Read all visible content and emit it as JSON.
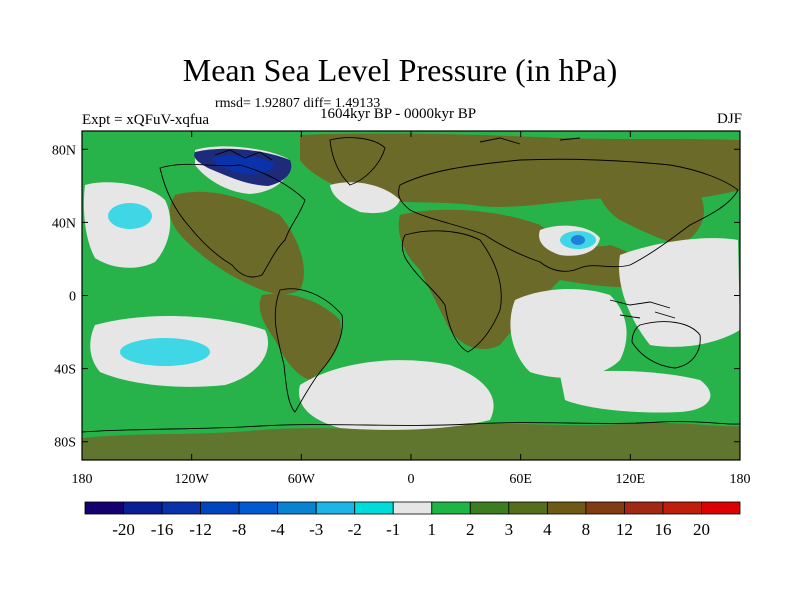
{
  "title": "Mean Sea Level Pressure (in hPa)",
  "stats": "rmsd= 1.92807 diff= 1.49133",
  "period": "1604kyr BP - 0000kyr BP",
  "experiment": "Expt = xQFuV-xqfua",
  "season": "DJF",
  "map": {
    "lat_range": [
      -90,
      90
    ],
    "lon_range": [
      -180,
      180
    ],
    "x_ticks": [
      "180",
      "120W",
      "60W",
      "0",
      "60E",
      "120E",
      "180"
    ],
    "x_tick_values": [
      -180,
      -120,
      -60,
      0,
      60,
      120,
      180
    ],
    "y_ticks": [
      "80N",
      "40N",
      "0",
      "40S",
      "80S"
    ],
    "y_tick_values": [
      80,
      40,
      0,
      -40,
      -80
    ]
  },
  "colorbar": {
    "labels": [
      "-20",
      "-16",
      "-12",
      "-8",
      "-4",
      "-3",
      "-2",
      "-1",
      "1",
      "2",
      "3",
      "4",
      "8",
      "12",
      "16",
      "20"
    ],
    "colors": [
      "#14006e",
      "#0a1e96",
      "#0a32aa",
      "#0046be",
      "#005ad2",
      "#0a82d2",
      "#1eb4e6",
      "#00dcdc",
      "#e6e6e6",
      "#1eb446",
      "#3c7d1e",
      "#556e1e",
      "#6e5a14",
      "#823c14",
      "#a02814",
      "#be1e0a",
      "#dc0000"
    ]
  },
  "colors": {
    "ocean_green": "#27b34a",
    "land_brown": "#6b6a28",
    "neutral_grey": "#e6e6e6",
    "cyan": "#3fd6e6",
    "blue": "#1f7fd9",
    "navy": "#1e2a7a"
  }
}
